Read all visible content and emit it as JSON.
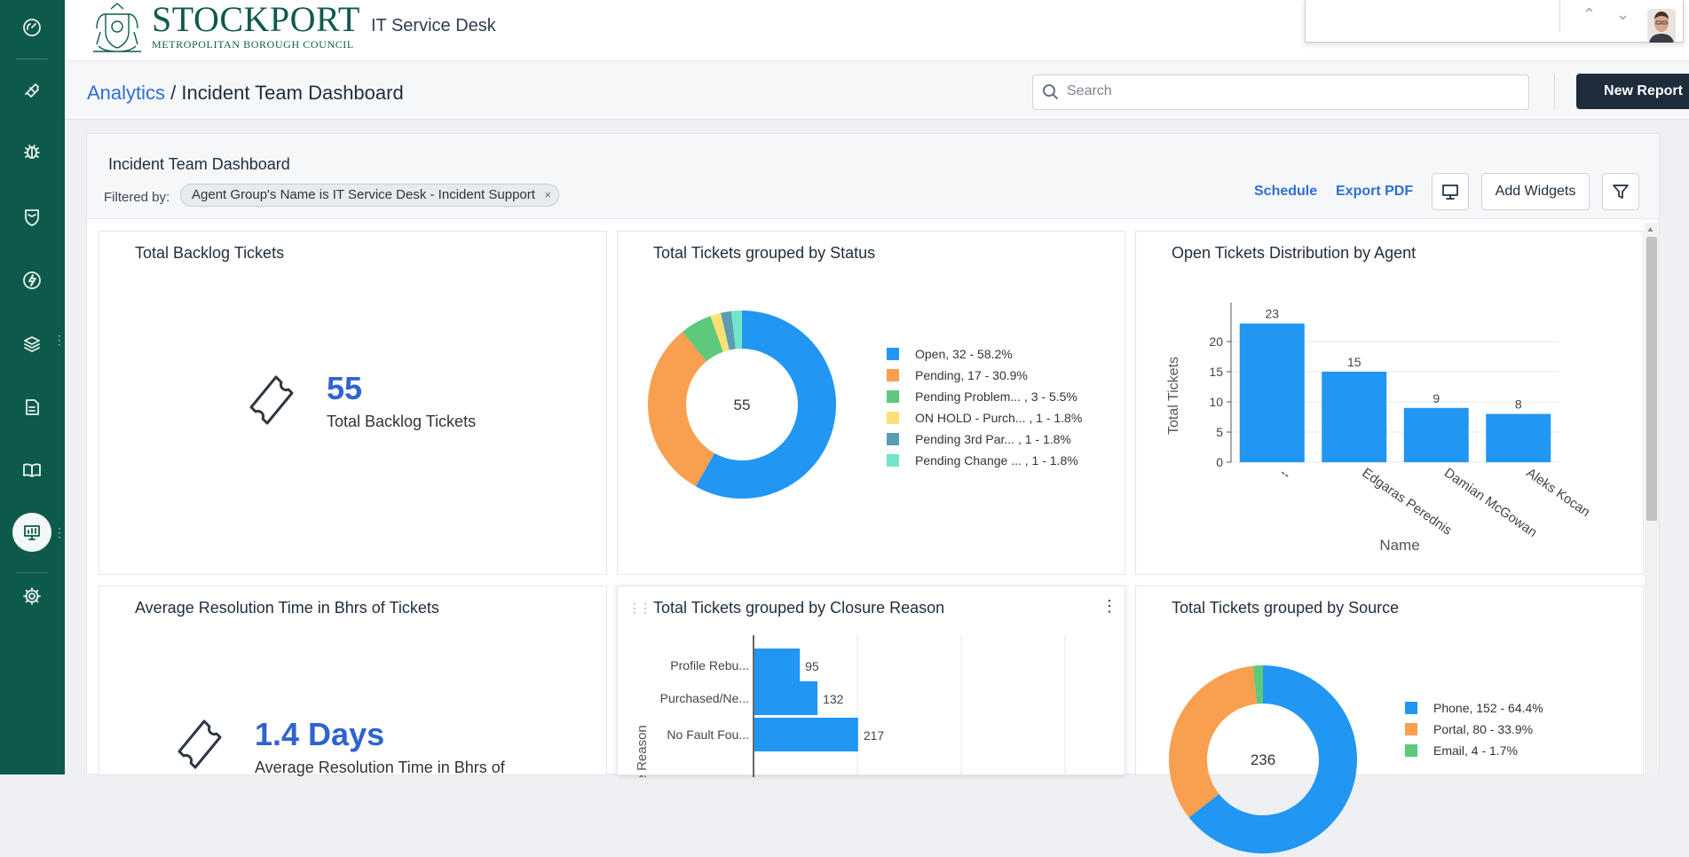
{
  "app": {
    "logo_main": "STOCKPORT",
    "logo_sub": "METROPOLITAN BOROUGH COUNCIL",
    "title": "IT Service Desk"
  },
  "findbar": {
    "up": "⌃",
    "down": "⌄",
    "close": "✕"
  },
  "breadcrumb": {
    "parent": "Analytics",
    "separator": " / ",
    "current": "Incident Team Dashboard"
  },
  "search": {
    "placeholder": "Search",
    "value": ""
  },
  "new_report_label": "New Report",
  "dashboard": {
    "title": "Incident Team Dashboard",
    "filtered_by_label": "Filtered by:",
    "filter_chip": "Agent Group's Name is IT Service Desk - Incident Support",
    "schedule_label": "Schedule",
    "export_pdf_label": "Export PDF",
    "add_widgets_label": "Add Widgets"
  },
  "widgets": {
    "backlog": {
      "title": "Total Backlog Tickets",
      "value": "55",
      "label": "Total Backlog Tickets"
    },
    "avg_resolution": {
      "title": "Average Resolution Time in Bhrs of Tickets",
      "value": "1.4 Days",
      "label": "Average Resolution Time in Bhrs of"
    },
    "status": {
      "title": "Total Tickets grouped by Status"
    },
    "agent": {
      "title": "Open Tickets Distribution by Agent"
    },
    "closure": {
      "title": "Total Tickets grouped by Closure Reason"
    },
    "source": {
      "title": "Total Tickets grouped by Source"
    }
  },
  "colors": {
    "sidebar": "#0d5a4c",
    "primary": "#2f6fd0",
    "blue": "#2196f3",
    "orange": "#f8a04f",
    "green": "#5cc97b",
    "yellow": "#fde074",
    "steel": "#5b9db2",
    "aqua": "#72e5c9"
  },
  "chart_data": [
    {
      "type": "pie",
      "donut": true,
      "title": "Total Tickets grouped by Status",
      "center_label": "55",
      "slices": [
        {
          "label": "Open,",
          "value": 32,
          "text": "32 - 58.2%",
          "color": "#2196f3"
        },
        {
          "label": "Pending,",
          "value": 17,
          "text": "17 - 30.9%",
          "color": "#f8a04f"
        },
        {
          "label": "Pending Problem... ,",
          "value": 3,
          "text": "3 - 5.5%",
          "color": "#5cc97b"
        },
        {
          "label": "ON HOLD - Purch... ,",
          "value": 1,
          "text": "1 - 1.8%",
          "color": "#fde074"
        },
        {
          "label": "Pending 3rd Par... ,",
          "value": 1,
          "text": "1 - 1.8%",
          "color": "#5b9db2"
        },
        {
          "label": "Pending Change ... ,",
          "value": 1,
          "text": "1 - 1.8%",
          "color": "#72e5c9"
        }
      ]
    },
    {
      "type": "bar",
      "title": "Open Tickets Distribution by Agent",
      "categories": [
        "--",
        "Edgaras Perednis",
        "Damian McGowan",
        "Aleks Kocan"
      ],
      "values": [
        23,
        15,
        9,
        8
      ],
      "xlabel": "Name",
      "ylabel": "Total Tickets",
      "yticks": [
        "0",
        "5",
        "10",
        "15",
        "20"
      ],
      "ylim": [
        0,
        25
      ]
    },
    {
      "type": "bar",
      "orientation": "horizontal",
      "title": "Total Tickets grouped by Closure Reason",
      "categories": [
        "Profile Rebu...",
        "Purchased/Ne...",
        "No Fault Fou..."
      ],
      "values": [
        95,
        132,
        217
      ],
      "ylabel": "ure Reason",
      "xlim": [
        0,
        650
      ]
    },
    {
      "type": "pie",
      "donut": true,
      "title": "Total Tickets grouped by Source",
      "center_label": "236",
      "slices": [
        {
          "label": "Phone,",
          "value": 152,
          "text": "152 - 64.4%",
          "color": "#2196f3"
        },
        {
          "label": "Portal,",
          "value": 80,
          "text": "80 - 33.9%",
          "color": "#f8a04f"
        },
        {
          "label": "Email,",
          "value": 4,
          "text": "4 - 1.7%",
          "color": "#5cc97b"
        }
      ]
    }
  ]
}
